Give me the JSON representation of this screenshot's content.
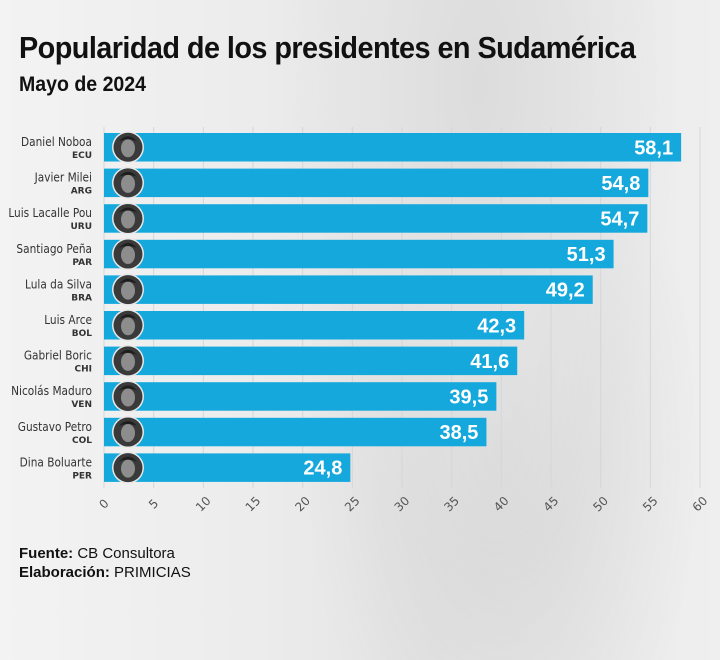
{
  "header": {
    "title": "Popularidad de los presidentes en Sudamérica",
    "subtitle": "Mayo de 2024"
  },
  "colors": {
    "bar": "#15a8dc",
    "value_label": "#ffffff",
    "name_label": "#333333",
    "grid": "#d6d6d6",
    "tick_label": "#555555"
  },
  "chart_data": {
    "type": "bar",
    "orientation": "horizontal",
    "title": "Popularidad de los presidentes en Sudamérica",
    "subtitle": "Mayo de 2024",
    "xlabel": "",
    "ylabel": "",
    "xlim": [
      0,
      60
    ],
    "xticks": [
      0,
      5,
      10,
      15,
      20,
      25,
      30,
      35,
      40,
      45,
      50,
      55,
      60
    ],
    "grid": true,
    "legend": "none",
    "categories": [
      {
        "name": "Daniel Noboa",
        "country": "ECU"
      },
      {
        "name": "Javier Milei",
        "country": "ARG"
      },
      {
        "name": "Luis Lacalle Pou",
        "country": "URU"
      },
      {
        "name": "Santiago Peña",
        "country": "PAR"
      },
      {
        "name": "Lula da Silva",
        "country": "BRA"
      },
      {
        "name": "Luis Arce",
        "country": "BOL"
      },
      {
        "name": "Gabriel Boric",
        "country": "CHI"
      },
      {
        "name": "Nicolás Maduro",
        "country": "VEN"
      },
      {
        "name": "Gustavo Petro",
        "country": "COL"
      },
      {
        "name": "Dina Boluarte",
        "country": "PER"
      }
    ],
    "values": [
      58.1,
      54.8,
      54.7,
      51.3,
      49.2,
      42.3,
      41.6,
      39.5,
      38.5,
      24.8
    ],
    "value_labels": [
      "58,1",
      "54,8",
      "54,7",
      "51,3",
      "49,2",
      "42,3",
      "41,6",
      "39,5",
      "38,5",
      "24,8"
    ]
  },
  "footer": {
    "source_label": "Fuente:",
    "source_value": "CB Consultora",
    "credit_label": "Elaboración:",
    "credit_value": "PRIMICIAS"
  }
}
